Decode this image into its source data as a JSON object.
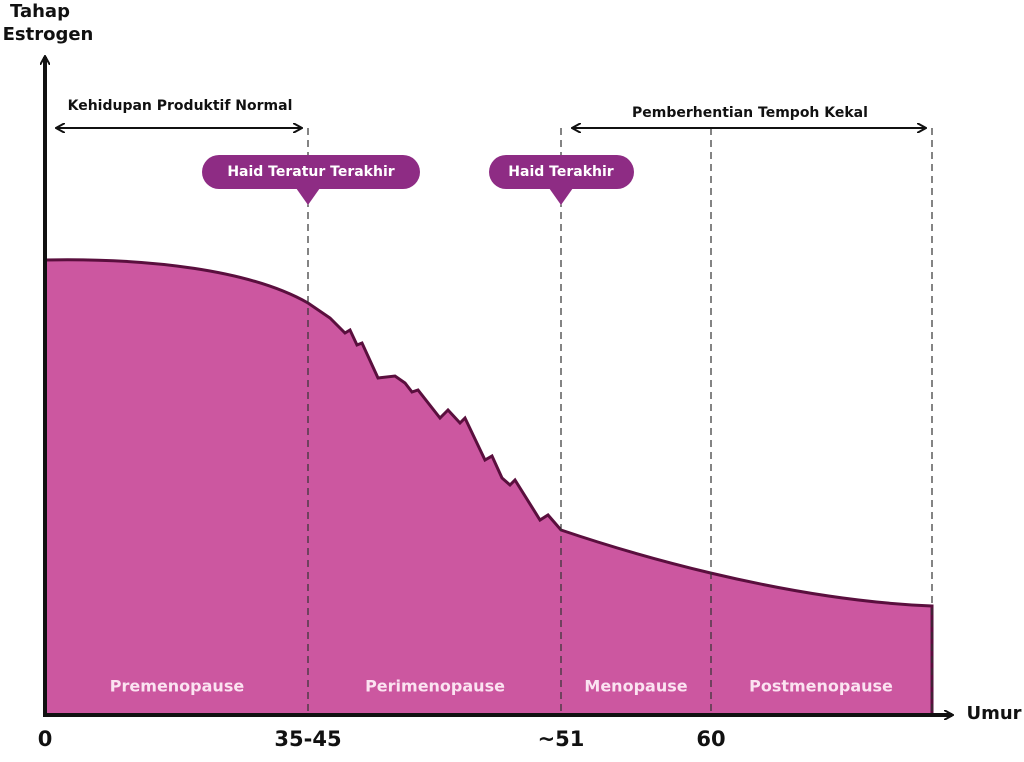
{
  "y_axis_label": [
    "Tahap",
    "Estrogen"
  ],
  "x_axis_label": "Umur",
  "x_labels": [
    "0",
    "35-45",
    "~51",
    "60"
  ],
  "phases": [
    "Premenopause",
    "Perimenopause",
    "Menopause",
    "Postmenopause"
  ],
  "markers": [
    "Haid Teratur Terakhir",
    "Haid Terakhir"
  ],
  "ranges": [
    "Kehidupan Produktif Normal",
    "Pemberhentian Tempoh Kekal"
  ]
}
